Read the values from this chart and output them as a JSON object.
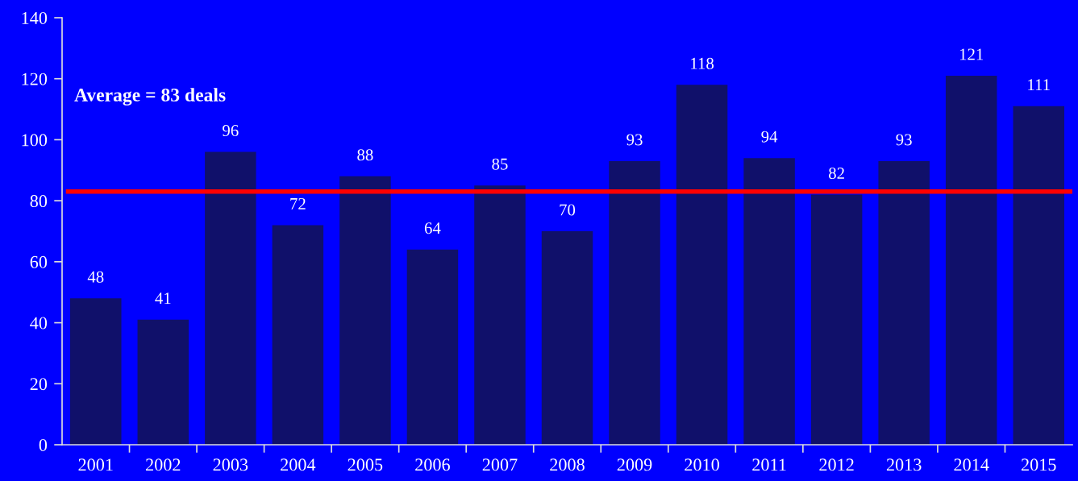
{
  "chart_data": {
    "type": "bar",
    "categories": [
      "2001",
      "2002",
      "2003",
      "2004",
      "2005",
      "2006",
      "2007",
      "2008",
      "2009",
      "2010",
      "2011",
      "2012",
      "2013",
      "2014",
      "2015"
    ],
    "values": [
      48,
      41,
      96,
      72,
      88,
      64,
      85,
      70,
      93,
      118,
      94,
      82,
      93,
      121,
      111
    ],
    "color": "#10106a",
    "ylim": [
      0,
      140
    ],
    "yticks": [
      0,
      20,
      40,
      60,
      80,
      100,
      120,
      140
    ],
    "data_labels": true,
    "ref_lines": [
      {
        "axis": "y",
        "value": 83,
        "color": "#ff0000"
      }
    ],
    "annotations": [
      "Average = 83 deals"
    ]
  }
}
